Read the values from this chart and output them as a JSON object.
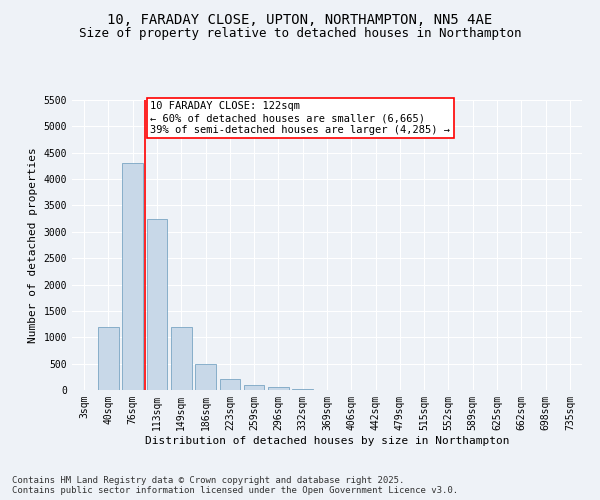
{
  "title": "10, FARADAY CLOSE, UPTON, NORTHAMPTON, NN5 4AE",
  "subtitle": "Size of property relative to detached houses in Northampton",
  "xlabel": "Distribution of detached houses by size in Northampton",
  "ylabel": "Number of detached properties",
  "bar_color": "#c8d8e8",
  "bar_edge_color": "#6699bb",
  "vline_color": "red",
  "vline_x_index": 3,
  "categories": [
    "3sqm",
    "40sqm",
    "76sqm",
    "113sqm",
    "149sqm",
    "186sqm",
    "223sqm",
    "259sqm",
    "296sqm",
    "332sqm",
    "369sqm",
    "406sqm",
    "442sqm",
    "479sqm",
    "515sqm",
    "552sqm",
    "589sqm",
    "625sqm",
    "662sqm",
    "698sqm",
    "735sqm"
  ],
  "values": [
    0,
    1200,
    4300,
    3250,
    1200,
    500,
    200,
    100,
    50,
    10,
    5,
    2,
    0,
    0,
    0,
    0,
    0,
    0,
    0,
    0,
    0
  ],
  "ylim": [
    0,
    5500
  ],
  "yticks": [
    0,
    500,
    1000,
    1500,
    2000,
    2500,
    3000,
    3500,
    4000,
    4500,
    5000,
    5500
  ],
  "annotation_text": "10 FARADAY CLOSE: 122sqm\n← 60% of detached houses are smaller (6,665)\n39% of semi-detached houses are larger (4,285) →",
  "bg_color": "#eef2f7",
  "plot_bg_color": "#eef2f7",
  "grid_color": "#ffffff",
  "footer_line1": "Contains HM Land Registry data © Crown copyright and database right 2025.",
  "footer_line2": "Contains public sector information licensed under the Open Government Licence v3.0.",
  "title_fontsize": 10,
  "subtitle_fontsize": 9,
  "axis_label_fontsize": 8,
  "tick_fontsize": 7,
  "annotation_fontsize": 7.5,
  "footer_fontsize": 6.5
}
